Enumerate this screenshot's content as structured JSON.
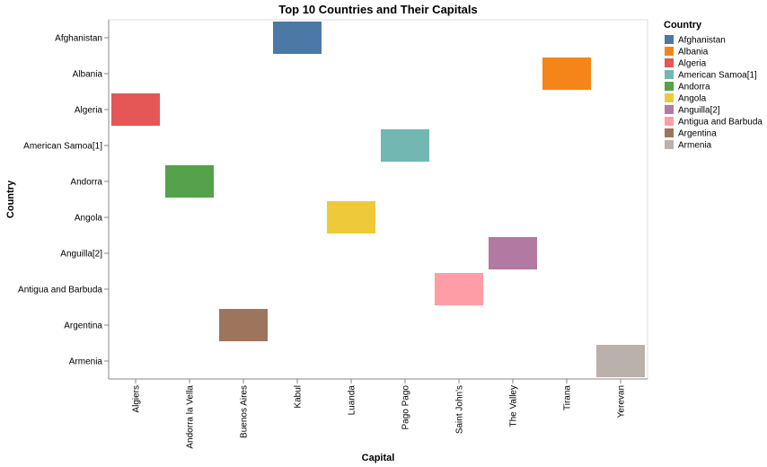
{
  "chart_data": {
    "type": "heatmap",
    "title": "Top 10 Countries and Their Capitals",
    "xlabel": "Capital",
    "ylabel": "Country",
    "x_categories": [
      "Algiers",
      "Andorra la Vella",
      "Buenos Aires",
      "Kabul",
      "Luanda",
      "Pago Pago",
      "Saint John's",
      "The Valley",
      "Tirana",
      "Yerevan"
    ],
    "y_categories": [
      "Afghanistan",
      "Albania",
      "Algeria",
      "American Samoa[1]",
      "Andorra",
      "Angola",
      "Anguilla[2]",
      "Antigua and Barbuda",
      "Argentina",
      "Armenia"
    ],
    "points": [
      {
        "country": "Afghanistan",
        "capital": "Kabul"
      },
      {
        "country": "Albania",
        "capital": "Tirana"
      },
      {
        "country": "Algeria",
        "capital": "Algiers"
      },
      {
        "country": "American Samoa[1]",
        "capital": "Pago Pago"
      },
      {
        "country": "Andorra",
        "capital": "Andorra la Vella"
      },
      {
        "country": "Angola",
        "capital": "Luanda"
      },
      {
        "country": "Anguilla[2]",
        "capital": "The Valley"
      },
      {
        "country": "Antigua and Barbuda",
        "capital": "Saint John's"
      },
      {
        "country": "Argentina",
        "capital": "Buenos Aires"
      },
      {
        "country": "Armenia",
        "capital": "Yerevan"
      }
    ],
    "legend": {
      "title": "Country",
      "placement": "right",
      "entries": [
        {
          "label": "Afghanistan",
          "color": "#4c78a8"
        },
        {
          "label": "Albania",
          "color": "#f58518"
        },
        {
          "label": "Algeria",
          "color": "#e45756"
        },
        {
          "label": "American Samoa[1]",
          "color": "#72b7b2"
        },
        {
          "label": "Andorra",
          "color": "#54a24b"
        },
        {
          "label": "Angola",
          "color": "#eeca3b"
        },
        {
          "label": "Anguilla[2]",
          "color": "#b279a2"
        },
        {
          "label": "Antigua and Barbuda",
          "color": "#ff9da6"
        },
        {
          "label": "Argentina",
          "color": "#9d755d"
        },
        {
          "label": "Armenia",
          "color": "#bab0ac"
        }
      ]
    },
    "grid": false
  }
}
